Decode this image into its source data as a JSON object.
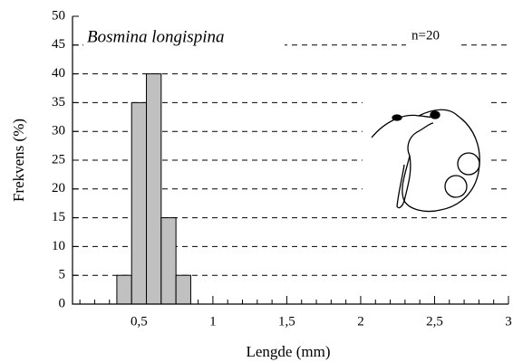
{
  "chart_data": {
    "type": "histogram",
    "title": "Bosmina longispina",
    "annotation": "n=20",
    "x_label": "Lengde (mm)",
    "y_label": "Frekvens (%)",
    "bins": [
      0.35,
      0.45,
      0.55,
      0.65,
      0.75,
      0.85
    ],
    "values": [
      5,
      35,
      40,
      15,
      5
    ],
    "color": "#c0c0c0",
    "xlim": [
      0.05,
      3
    ],
    "xticks": [
      {
        "value": 0.5,
        "label": "0,5"
      },
      1,
      {
        "value": 1.5,
        "label": "1,5"
      },
      2,
      {
        "value": 2.5,
        "label": "2,5"
      },
      3
    ],
    "x_minor_ticks": [
      0.1,
      0.2,
      0.3,
      0.4,
      0.6,
      0.7,
      0.8,
      0.9,
      1.1,
      1.2,
      1.3,
      1.4,
      1.6,
      1.7,
      1.8,
      1.9,
      2.1,
      2.2,
      2.3,
      2.4,
      2.6,
      2.7,
      2.8,
      2.9
    ],
    "ylim": [
      0,
      50
    ],
    "yticks": [
      0,
      5,
      10,
      15,
      20,
      25,
      30,
      35,
      40,
      45,
      50
    ],
    "grid": true
  }
}
